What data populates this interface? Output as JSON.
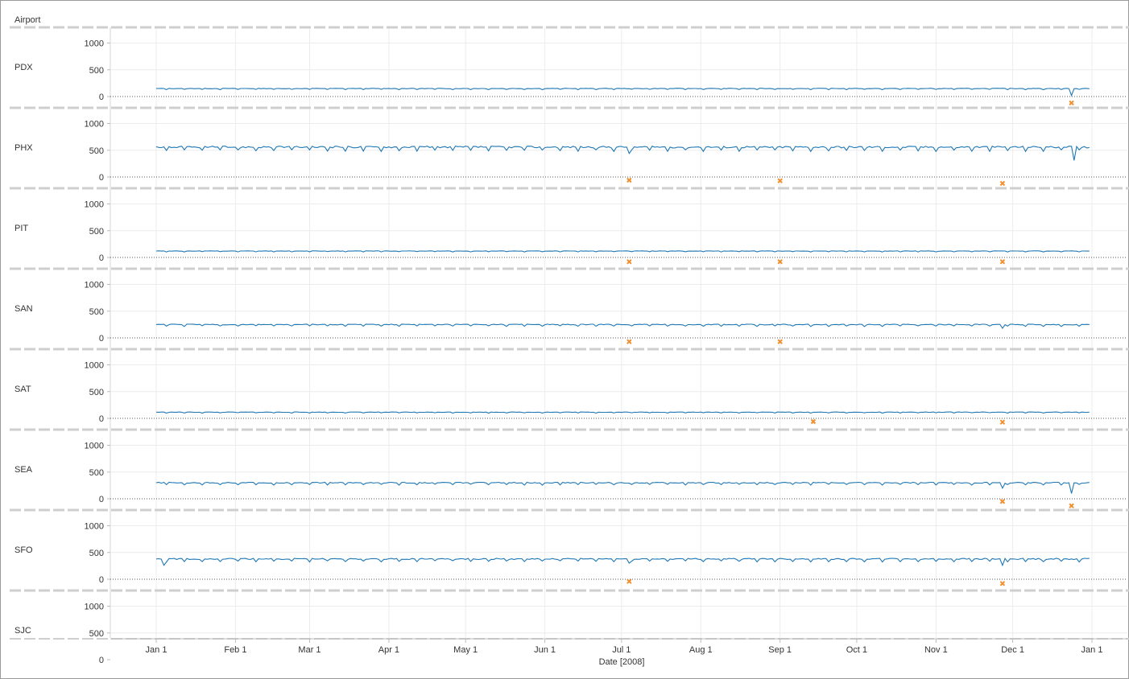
{
  "header": {
    "row_field": "Airport"
  },
  "chart_data": {
    "type": "line",
    "row_label": "Airport",
    "xlabel": "Date [2008]",
    "x_ticks": [
      "Jan 1",
      "Feb 1",
      "Mar 1",
      "Apr 1",
      "May 1",
      "Jun 1",
      "Jul 1",
      "Aug 1",
      "Sep 1",
      "Oct 1",
      "Nov 1",
      "Dec 1",
      "Jan 1"
    ],
    "y_ticks": [
      0,
      500,
      1000
    ],
    "ylim": [
      -200,
      1000
    ],
    "grid": true,
    "line_color": "#1f77b4",
    "marker_color": "#f28e2b",
    "panels": [
      {
        "airport": "PDX",
        "baseline": 150,
        "dips": [
          {
            "date": "2008-12-24",
            "value": 20
          }
        ],
        "markers": [
          {
            "date": "2008-12-24",
            "value": -120
          }
        ]
      },
      {
        "airport": "PHX",
        "baseline": 560,
        "dips": [
          {
            "date": "2008-07-04",
            "value": 440
          },
          {
            "date": "2008-12-25",
            "value": 310
          }
        ],
        "markers": [
          {
            "date": "2008-07-04",
            "value": -60
          },
          {
            "date": "2008-09-01",
            "value": -70
          },
          {
            "date": "2008-11-27",
            "value": -120
          }
        ]
      },
      {
        "airport": "PIT",
        "baseline": 120,
        "dips": [],
        "markers": [
          {
            "date": "2008-07-04",
            "value": -80
          },
          {
            "date": "2008-09-01",
            "value": -80
          },
          {
            "date": "2008-11-27",
            "value": -80
          }
        ]
      },
      {
        "airport": "SAN",
        "baseline": 250,
        "dips": [
          {
            "date": "2008-11-27",
            "value": 180
          }
        ],
        "markers": [
          {
            "date": "2008-07-04",
            "value": -70
          },
          {
            "date": "2008-09-01",
            "value": -70
          }
        ]
      },
      {
        "airport": "SAT",
        "baseline": 115,
        "dips": [],
        "markers": [
          {
            "date": "2008-09-14",
            "value": -60
          },
          {
            "date": "2008-11-27",
            "value": -70
          }
        ]
      },
      {
        "airport": "SEA",
        "baseline": 300,
        "dips": [
          {
            "date": "2008-11-27",
            "value": 200
          },
          {
            "date": "2008-12-24",
            "value": 100
          }
        ],
        "markers": [
          {
            "date": "2008-11-27",
            "value": -50
          },
          {
            "date": "2008-12-24",
            "value": -130
          }
        ]
      },
      {
        "airport": "SFO",
        "baseline": 380,
        "dips": [
          {
            "date": "2008-01-04",
            "value": 260
          },
          {
            "date": "2008-07-04",
            "value": 300
          },
          {
            "date": "2008-11-27",
            "value": 260
          }
        ],
        "markers": [
          {
            "date": "2008-07-04",
            "value": -40
          },
          {
            "date": "2008-11-27",
            "value": -80
          }
        ]
      },
      {
        "airport": "SJC",
        "baseline": null,
        "dips": [],
        "markers": []
      }
    ]
  }
}
